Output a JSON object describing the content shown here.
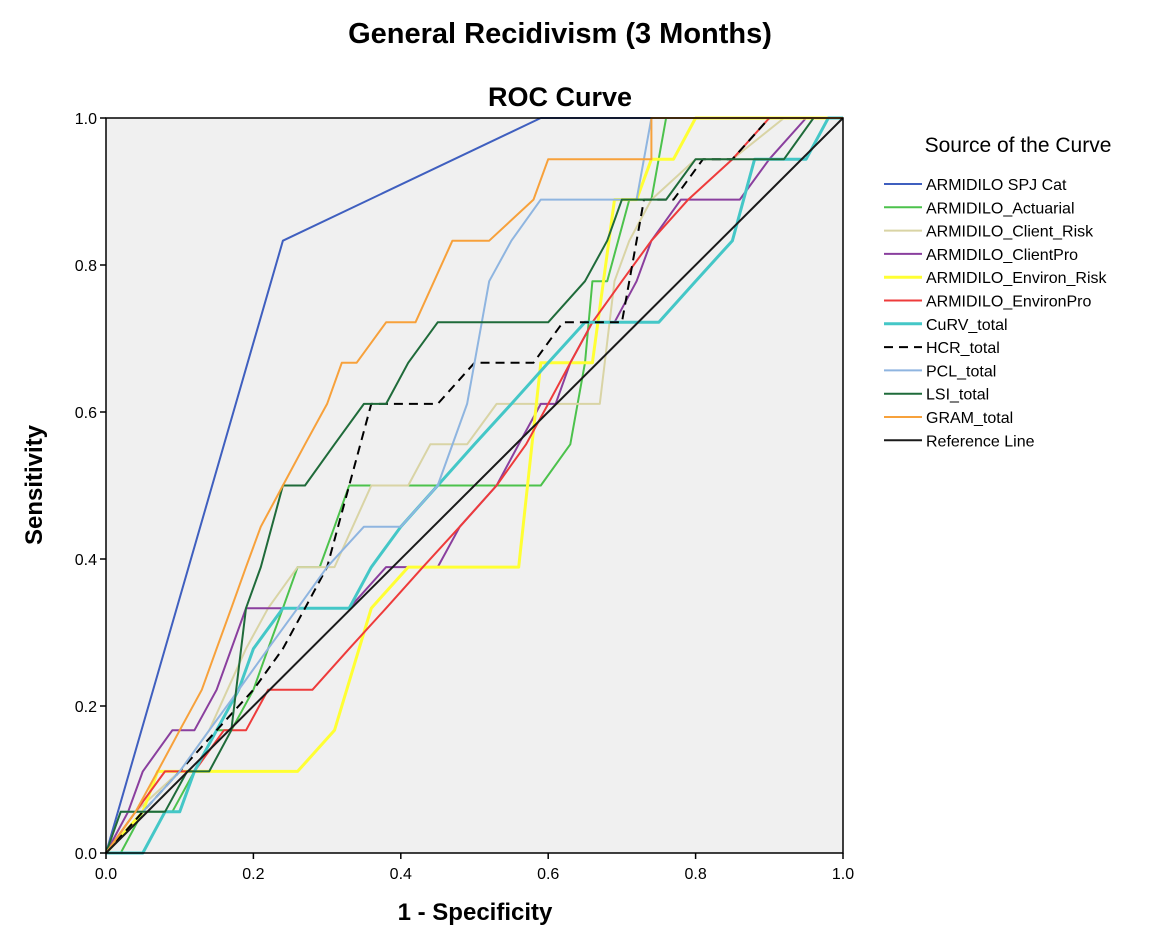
{
  "chart_data": {
    "type": "line",
    "suptitle": "General Recidivism (3 Months)",
    "title": "ROC Curve",
    "xlabel": "1 - Specificity",
    "ylabel": "Sensitivity",
    "xlim": [
      0,
      1
    ],
    "ylim": [
      0,
      1
    ],
    "xticks": [
      "0.0",
      "0.2",
      "0.4",
      "0.6",
      "0.8",
      "1.0"
    ],
    "yticks": [
      "0.0",
      "0.2",
      "0.4",
      "0.6",
      "0.8",
      "1.0"
    ],
    "grid": false,
    "plot_background": "#f0f0f0",
    "legend": {
      "title": "Source of the Curve",
      "placement": "right"
    },
    "series": [
      {
        "name": "ARMIDILO SPJ Cat",
        "color": "#3f5fbf",
        "width": 2,
        "dash": "",
        "x": [
          0,
          0.24,
          0.59,
          1
        ],
        "y": [
          0,
          0.833,
          1,
          1
        ]
      },
      {
        "name": "ARMIDILO_Actuarial",
        "color": "#4cc24c",
        "width": 2,
        "dash": "",
        "x": [
          0,
          0.02,
          0.05,
          0.09,
          0.12,
          0.15,
          0.17,
          0.2,
          0.22,
          0.24,
          0.26,
          0.29,
          0.31,
          0.33,
          0.36,
          0.41,
          0.45,
          0.48,
          0.52,
          0.56,
          0.59,
          0.63,
          0.65,
          0.66,
          0.68,
          0.71,
          0.74,
          0.76,
          0.78,
          0.8,
          0.84,
          0.87,
          0.9,
          0.95,
          1
        ],
        "y": [
          0,
          0,
          0.056,
          0.056,
          0.111,
          0.167,
          0.167,
          0.222,
          0.278,
          0.333,
          0.389,
          0.389,
          0.444,
          0.5,
          0.5,
          0.5,
          0.5,
          0.5,
          0.5,
          0.5,
          0.5,
          0.556,
          0.667,
          0.778,
          0.778,
          0.889,
          0.889,
          1,
          1,
          1,
          1,
          1,
          1,
          1,
          1
        ]
      },
      {
        "name": "ARMIDILO_Client_Risk",
        "color": "#d9d4a5",
        "width": 2,
        "dash": "",
        "x": [
          0,
          0.04,
          0.1,
          0.14,
          0.19,
          0.22,
          0.26,
          0.31,
          0.36,
          0.41,
          0.44,
          0.49,
          0.53,
          0.58,
          0.65,
          0.67,
          0.69,
          0.71,
          0.74,
          0.8,
          0.85,
          0.92,
          1
        ],
        "y": [
          0,
          0.056,
          0.111,
          0.167,
          0.278,
          0.333,
          0.389,
          0.389,
          0.5,
          0.5,
          0.556,
          0.556,
          0.611,
          0.611,
          0.611,
          0.611,
          0.778,
          0.833,
          0.889,
          0.944,
          0.944,
          1,
          1
        ]
      },
      {
        "name": "ARMIDILO_ClientPro",
        "color": "#8a3f9e",
        "width": 2,
        "dash": "",
        "x": [
          0,
          0.03,
          0.05,
          0.09,
          0.12,
          0.15,
          0.19,
          0.22,
          0.24,
          0.29,
          0.33,
          0.38,
          0.43,
          0.45,
          0.48,
          0.53,
          0.56,
          0.59,
          0.61,
          0.63,
          0.66,
          0.69,
          0.72,
          0.74,
          0.78,
          0.82,
          0.86,
          0.9,
          0.95,
          1
        ],
        "y": [
          0,
          0.056,
          0.111,
          0.167,
          0.167,
          0.222,
          0.333,
          0.333,
          0.333,
          0.333,
          0.333,
          0.389,
          0.389,
          0.389,
          0.444,
          0.5,
          0.556,
          0.611,
          0.611,
          0.667,
          0.722,
          0.722,
          0.778,
          0.833,
          0.889,
          0.889,
          0.889,
          0.944,
          1,
          1
        ]
      },
      {
        "name": "ARMIDILO_Environ_Risk",
        "color": "#ffff33",
        "width": 3,
        "dash": "",
        "x": [
          0,
          0.05,
          0.07,
          0.09,
          0.12,
          0.15,
          0.22,
          0.26,
          0.31,
          0.36,
          0.41,
          0.46,
          0.51,
          0.56,
          0.59,
          0.63,
          0.66,
          0.69,
          0.72,
          0.74,
          0.77,
          0.8,
          0.83,
          0.87,
          1
        ],
        "y": [
          0,
          0.056,
          0.111,
          0.111,
          0.111,
          0.111,
          0.111,
          0.111,
          0.167,
          0.333,
          0.389,
          0.389,
          0.389,
          0.389,
          0.667,
          0.667,
          0.667,
          0.889,
          0.889,
          0.944,
          0.944,
          1,
          1,
          1,
          1
        ]
      },
      {
        "name": "ARMIDILO_EnvironPro",
        "color": "#ee3b3b",
        "width": 2,
        "dash": "",
        "x": [
          0,
          0.04,
          0.08,
          0.12,
          0.16,
          0.19,
          0.22,
          0.25,
          0.28,
          0.33,
          0.38,
          0.43,
          0.48,
          0.53,
          0.57,
          0.6,
          0.63,
          0.66,
          0.7,
          0.74,
          0.79,
          0.85,
          0.9,
          0.95,
          1
        ],
        "y": [
          0,
          0.056,
          0.111,
          0.111,
          0.167,
          0.167,
          0.222,
          0.222,
          0.222,
          0.278,
          0.333,
          0.389,
          0.444,
          0.5,
          0.556,
          0.611,
          0.667,
          0.722,
          0.778,
          0.833,
          0.889,
          0.944,
          1,
          1,
          1
        ]
      },
      {
        "name": "CuRV_total",
        "color": "#44c7c7",
        "width": 3,
        "dash": "",
        "x": [
          0,
          0.05,
          0.08,
          0.1,
          0.12,
          0.15,
          0.18,
          0.2,
          0.24,
          0.29,
          0.33,
          0.36,
          0.4,
          0.45,
          0.5,
          0.55,
          0.6,
          0.65,
          0.7,
          0.75,
          0.8,
          0.85,
          0.88,
          0.9,
          0.95,
          0.98,
          1
        ],
        "y": [
          0,
          0,
          0.056,
          0.056,
          0.111,
          0.167,
          0.222,
          0.278,
          0.333,
          0.333,
          0.333,
          0.389,
          0.444,
          0.5,
          0.556,
          0.611,
          0.667,
          0.722,
          0.722,
          0.722,
          0.778,
          0.833,
          0.944,
          0.944,
          0.944,
          1,
          1
        ]
      },
      {
        "name": "HCR_total",
        "color": "#000000",
        "width": 2,
        "dash": "9,6",
        "x": [
          0,
          0.05,
          0.1,
          0.15,
          0.2,
          0.24,
          0.27,
          0.3,
          0.33,
          0.36,
          0.4,
          0.45,
          0.5,
          0.54,
          0.58,
          0.62,
          0.66,
          0.7,
          0.73,
          0.77,
          0.81,
          0.85,
          0.9,
          0.95,
          1
        ],
        "y": [
          0,
          0.056,
          0.111,
          0.167,
          0.222,
          0.278,
          0.333,
          0.389,
          0.5,
          0.611,
          0.611,
          0.611,
          0.667,
          0.667,
          0.667,
          0.722,
          0.722,
          0.722,
          0.889,
          0.889,
          0.944,
          0.944,
          1,
          1,
          1
        ]
      },
      {
        "name": "PCL_total",
        "color": "#8fb5e0",
        "width": 2,
        "dash": "",
        "x": [
          0,
          0.02,
          0.05,
          0.1,
          0.14,
          0.18,
          0.22,
          0.26,
          0.3,
          0.35,
          0.4,
          0.45,
          0.49,
          0.52,
          0.55,
          0.59,
          0.63,
          0.68,
          0.72,
          0.74,
          0.78,
          0.82,
          0.86,
          0.9,
          0.95,
          1
        ],
        "y": [
          0,
          0.056,
          0.056,
          0.111,
          0.167,
          0.222,
          0.278,
          0.333,
          0.389,
          0.444,
          0.444,
          0.5,
          0.611,
          0.778,
          0.833,
          0.889,
          0.889,
          0.889,
          0.889,
          1,
          1,
          1,
          1,
          1,
          1,
          1
        ]
      },
      {
        "name": "LSI_total",
        "color": "#1f6b3a",
        "width": 2,
        "dash": "",
        "x": [
          0,
          0.02,
          0.05,
          0.08,
          0.11,
          0.14,
          0.17,
          0.19,
          0.21,
          0.24,
          0.27,
          0.31,
          0.35,
          0.38,
          0.41,
          0.45,
          0.5,
          0.55,
          0.6,
          0.65,
          0.68,
          0.7,
          0.73,
          0.76,
          0.8,
          0.84,
          0.88,
          0.92,
          0.96,
          1
        ],
        "y": [
          0,
          0.056,
          0.056,
          0.056,
          0.111,
          0.111,
          0.167,
          0.333,
          0.389,
          0.5,
          0.5,
          0.556,
          0.611,
          0.611,
          0.667,
          0.722,
          0.722,
          0.722,
          0.722,
          0.778,
          0.833,
          0.889,
          0.889,
          0.889,
          0.944,
          0.944,
          0.944,
          0.944,
          1,
          1
        ]
      },
      {
        "name": "GRAM_total",
        "color": "#f7a13b",
        "width": 2,
        "dash": "",
        "x": [
          0,
          0.04,
          0.07,
          0.1,
          0.13,
          0.15,
          0.17,
          0.19,
          0.21,
          0.24,
          0.27,
          0.3,
          0.32,
          0.34,
          0.38,
          0.42,
          0.47,
          0.52,
          0.58,
          0.6,
          0.64,
          0.69,
          0.74,
          0.74,
          0.8,
          0.86,
          0.91,
          0.95,
          1
        ],
        "y": [
          0,
          0.056,
          0.111,
          0.167,
          0.222,
          0.278,
          0.333,
          0.389,
          0.444,
          0.5,
          0.556,
          0.611,
          0.667,
          0.667,
          0.722,
          0.722,
          0.833,
          0.833,
          0.889,
          0.944,
          0.944,
          0.944,
          0.944,
          1,
          1,
          1,
          1,
          1,
          1
        ]
      },
      {
        "name": "Reference Line",
        "color": "#1a1a1a",
        "width": 2,
        "dash": "",
        "x": [
          0,
          1
        ],
        "y": [
          0,
          1
        ]
      }
    ]
  }
}
